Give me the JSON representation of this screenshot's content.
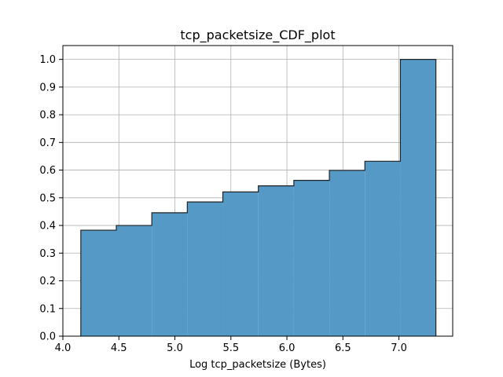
{
  "chart_data": {
    "type": "bar",
    "title": "tcp_packetsize_CDF_plot",
    "xlabel": "Log tcp_packetsize (Bytes)",
    "ylabel": "",
    "xlim": [
      4.0,
      7.48
    ],
    "ylim": [
      0.0,
      1.05
    ],
    "grid": true,
    "cumulative": true,
    "bar_color": "#5599c7",
    "edge_color": "#222222",
    "x_ticks": [
      4.0,
      4.5,
      5.0,
      5.5,
      6.0,
      6.5,
      7.0
    ],
    "x_tick_labels": [
      "4.0",
      "4.5",
      "5.0",
      "5.5",
      "6.0",
      "6.5",
      "7.0"
    ],
    "y_ticks": [
      0.0,
      0.1,
      0.2,
      0.3,
      0.4,
      0.5,
      0.6,
      0.7,
      0.8,
      0.9,
      1.0
    ],
    "y_tick_labels": [
      "0.0",
      "0.1",
      "0.2",
      "0.3",
      "0.4",
      "0.5",
      "0.6",
      "0.7",
      "0.8",
      "0.9",
      "1.0"
    ],
    "bin_edges": [
      4.16,
      4.477,
      4.794,
      5.111,
      5.428,
      5.745,
      6.062,
      6.379,
      6.696,
      7.013,
      7.33
    ],
    "values": [
      0.383,
      0.4,
      0.446,
      0.485,
      0.521,
      0.543,
      0.563,
      0.599,
      0.632,
      1.0
    ]
  }
}
